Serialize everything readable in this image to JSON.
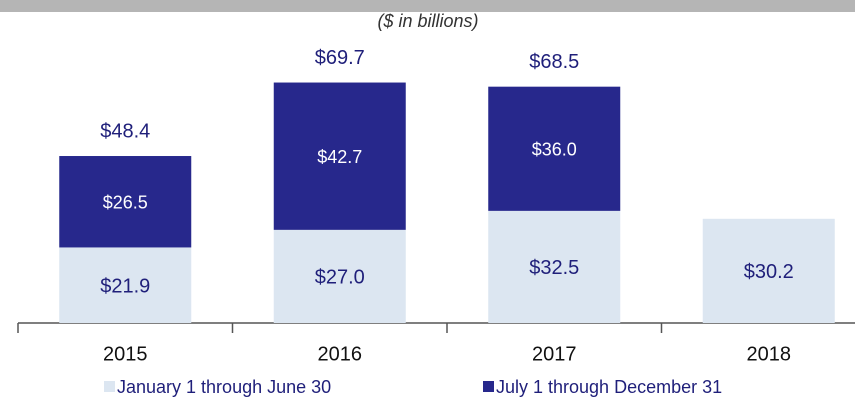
{
  "chart_data": {
    "type": "stacked-bar",
    "subtitle": "($ in billions)",
    "categories": [
      "2015",
      "2016",
      "2017",
      "2018"
    ],
    "series": [
      {
        "name": "January 1 through June 30",
        "color": "#dce6f1",
        "label_color": "#1f1f7a",
        "values": [
          21.9,
          27.0,
          32.5,
          30.2
        ],
        "value_labels": [
          "$21.9",
          "$27.0",
          "$32.5",
          "$30.2"
        ]
      },
      {
        "name": "July 1 through December 31",
        "color": "#27288c",
        "label_color": "#ffffff",
        "values": [
          26.5,
          42.7,
          36.0,
          null
        ],
        "value_labels": [
          "$26.5",
          "$42.7",
          "$36.0",
          null
        ]
      }
    ],
    "totals": [
      48.4,
      69.7,
      68.5,
      null
    ],
    "total_labels": [
      "$48.4",
      "$69.7",
      "$68.5",
      null
    ],
    "legend": "bottom"
  }
}
